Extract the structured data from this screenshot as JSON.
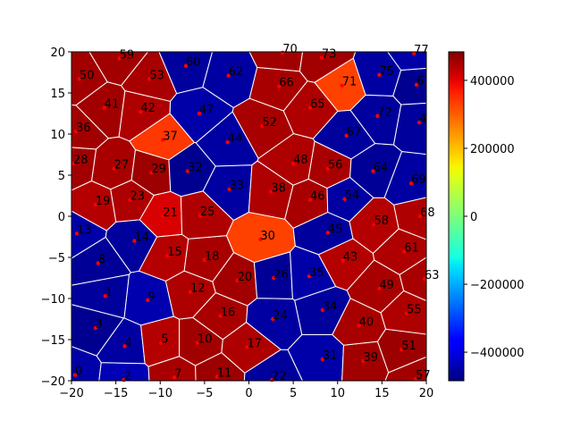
{
  "chart_data": {
    "type": "voronoi",
    "labels": [
      "0",
      "1",
      "2",
      "3",
      "4",
      "5",
      "6",
      "7",
      "8",
      "9",
      "10",
      "11",
      "12",
      "13",
      "14",
      "15",
      "16",
      "17",
      "18",
      "19",
      "20",
      "21",
      "22",
      "23",
      "24",
      "25",
      "26",
      "27",
      "28",
      "29",
      "30",
      "31",
      "32",
      "33",
      "34",
      "35",
      "36",
      "37",
      "38",
      "39",
      "40",
      "41",
      "42",
      "43",
      "44",
      "45",
      "46",
      "47",
      "48",
      "49",
      "50",
      "51",
      "52",
      "53",
      "54",
      "55",
      "56",
      "57",
      "58",
      "59",
      "60",
      "61",
      "62",
      "63",
      "64",
      "65",
      "66",
      "67",
      "68",
      "69",
      "70",
      "71",
      "72",
      "73",
      "4",
      "75",
      "77"
    ],
    "x": [
      -19.6,
      -16.2,
      -14.1,
      -17.3,
      -14.0,
      -9.9,
      18.9,
      -8.4,
      -17.0,
      -11.4,
      -5.8,
      -3.6,
      -6.6,
      -19.4,
      -12.9,
      -9.2,
      -3.2,
      -0.2,
      -5.0,
      -17.3,
      -1.3,
      -9.7,
      2.6,
      -13.4,
      2.7,
      -5.5,
      2.8,
      -15.2,
      -19.8,
      -11.0,
      1.3,
      8.3,
      -6.9,
      -2.2,
      8.3,
      6.8,
      -19.5,
      -9.7,
      2.5,
      12.9,
      12.4,
      -16.3,
      -12.2,
      10.6,
      -2.4,
      8.9,
      6.9,
      -5.6,
      5.0,
      14.7,
      -19.1,
      17.2,
      1.5,
      -11.2,
      10.8,
      17.8,
      8.9,
      18.8,
      14.1,
      -14.6,
      -7.1,
      17.5,
      -2.3,
      19.8,
      14.0,
      6.9,
      3.4,
      11.0,
      19.3,
      18.3,
      3.8,
      10.5,
      14.5,
      8.2,
      19.2,
      14.7,
      18.6
    ],
    "y": [
      -19.3,
      -9.7,
      -19.9,
      -13.6,
      -15.8,
      -15.4,
      16.0,
      -19.6,
      -5.7,
      -10.2,
      -15.4,
      -19.5,
      -9.2,
      -2.1,
      -3.0,
      -4.8,
      -12.1,
      -15.9,
      -5.3,
      1.4,
      -7.8,
      0.0,
      -19.9,
      2.0,
      -12.5,
      0.1,
      -7.5,
      5.8,
      6.4,
      5.3,
      -2.8,
      -17.4,
      5.5,
      3.3,
      -11.4,
      -7.3,
      10.3,
      9.3,
      3.0,
      -17.6,
      -13.3,
      13.2,
      12.7,
      -5.4,
      9.0,
      -2.0,
      2.0,
      12.5,
      6.4,
      -8.8,
      16.7,
      -16.2,
      11.0,
      16.7,
      2.1,
      -11.8,
      5.8,
      -19.8,
      -1.0,
      19.2,
      18.3,
      -4.3,
      17.1,
      -7.6,
      5.5,
      13.2,
      15.8,
      9.8,
      0.0,
      4.0,
      19.9,
      15.9,
      12.2,
      19.3,
      11.4,
      17.2,
      19.8
    ],
    "values": [
      -450000,
      -460000,
      -440000,
      -470000,
      -455000,
      440000,
      -470000,
      450000,
      -465000,
      -445000,
      455000,
      460000,
      445000,
      -450000,
      -460000,
      440000,
      450000,
      445000,
      450000,
      440000,
      455000,
      410000,
      -460000,
      445000,
      -455000,
      445000,
      -465000,
      450000,
      455000,
      460000,
      330000,
      -450000,
      -470000,
      -455000,
      -460000,
      -450000,
      455000,
      340000,
      445000,
      455000,
      450000,
      455000,
      445000,
      440000,
      -455000,
      -460000,
      450000,
      -450000,
      445000,
      450000,
      455000,
      460000,
      450000,
      450000,
      -455000,
      445000,
      450000,
      455000,
      440000,
      455000,
      -460000,
      445000,
      -455000,
      450000,
      -465000,
      445000,
      450000,
      -460000,
      445000,
      -455000,
      455000,
      330000,
      -460000,
      455000,
      -460000,
      -455000,
      -450000
    ],
    "colormap": "jet",
    "clim": [
      -484000,
      484000
    ],
    "point_color": "red",
    "edge_color": "white",
    "xlim": [
      -20,
      20
    ],
    "ylim": [
      -20,
      20
    ],
    "xticks": [
      {
        "value": -20,
        "label": "−20"
      },
      {
        "value": -15,
        "label": "−15"
      },
      {
        "value": -10,
        "label": "−10"
      },
      {
        "value": -5,
        "label": "−5"
      },
      0,
      5,
      10,
      15,
      20
    ],
    "yticks": [
      {
        "value": -20,
        "label": "−20"
      },
      {
        "value": -15,
        "label": "−15"
      },
      {
        "value": -10,
        "label": "−10"
      },
      {
        "value": -5,
        "label": "−5"
      },
      0,
      5,
      10,
      15,
      20
    ],
    "colorbar_ticks": [
      {
        "value": -400000,
        "label": "−400000"
      },
      {
        "value": -200000,
        "label": "−200000"
      },
      0,
      200000,
      400000
    ]
  }
}
